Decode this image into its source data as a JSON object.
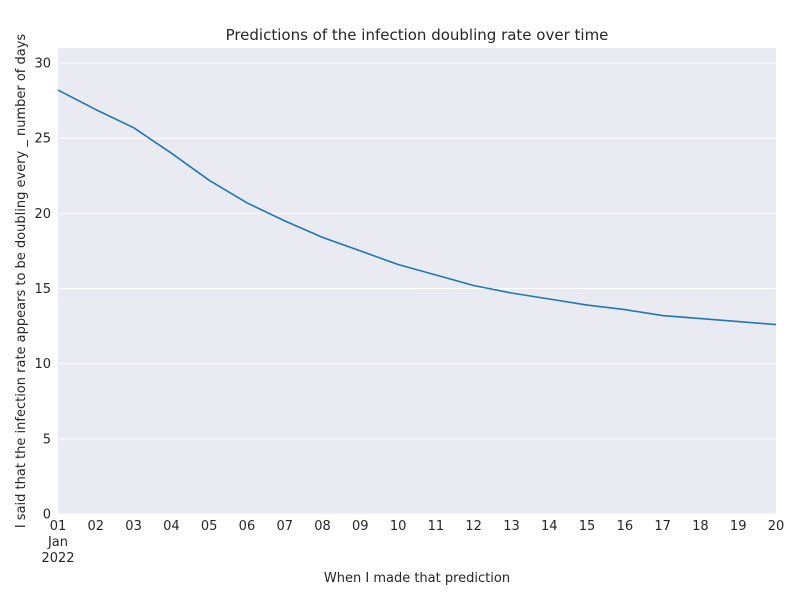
{
  "chart_data": {
    "type": "line",
    "title": "Predictions of the infection doubling rate over time",
    "xlabel": "When I made that prediction",
    "ylabel": "I said that the infection rate appears to be doubling every _ number of days",
    "x": [
      "2022-01-01",
      "2022-01-02",
      "2022-01-03",
      "2022-01-04",
      "2022-01-05",
      "2022-01-06",
      "2022-01-07",
      "2022-01-08",
      "2022-01-09",
      "2022-01-10",
      "2022-01-11",
      "2022-01-12",
      "2022-01-13",
      "2022-01-14",
      "2022-01-15",
      "2022-01-16",
      "2022-01-17",
      "2022-01-18",
      "2022-01-19",
      "2022-01-20"
    ],
    "x_tick_labels": [
      "01",
      "02",
      "03",
      "04",
      "05",
      "06",
      "07",
      "08",
      "09",
      "10",
      "11",
      "12",
      "13",
      "14",
      "15",
      "16",
      "17",
      "18",
      "19",
      "20"
    ],
    "x_tick_sub_month": "Jan",
    "x_tick_sub_year": "2022",
    "series": [
      {
        "values": [
          28.2,
          26.9,
          25.7,
          24.0,
          22.2,
          20.7,
          19.5,
          18.4,
          17.5,
          16.6,
          15.9,
          15.2,
          14.7,
          14.3,
          13.9,
          13.6,
          13.2,
          13.0,
          12.8,
          12.6
        ],
        "color": "#1f77b4"
      }
    ],
    "ylim": [
      0,
      31
    ],
    "yticks": [
      0,
      5,
      10,
      15,
      20,
      25,
      30
    ],
    "grid": true,
    "grid_axis": "y",
    "background": "#eaeaf2"
  }
}
